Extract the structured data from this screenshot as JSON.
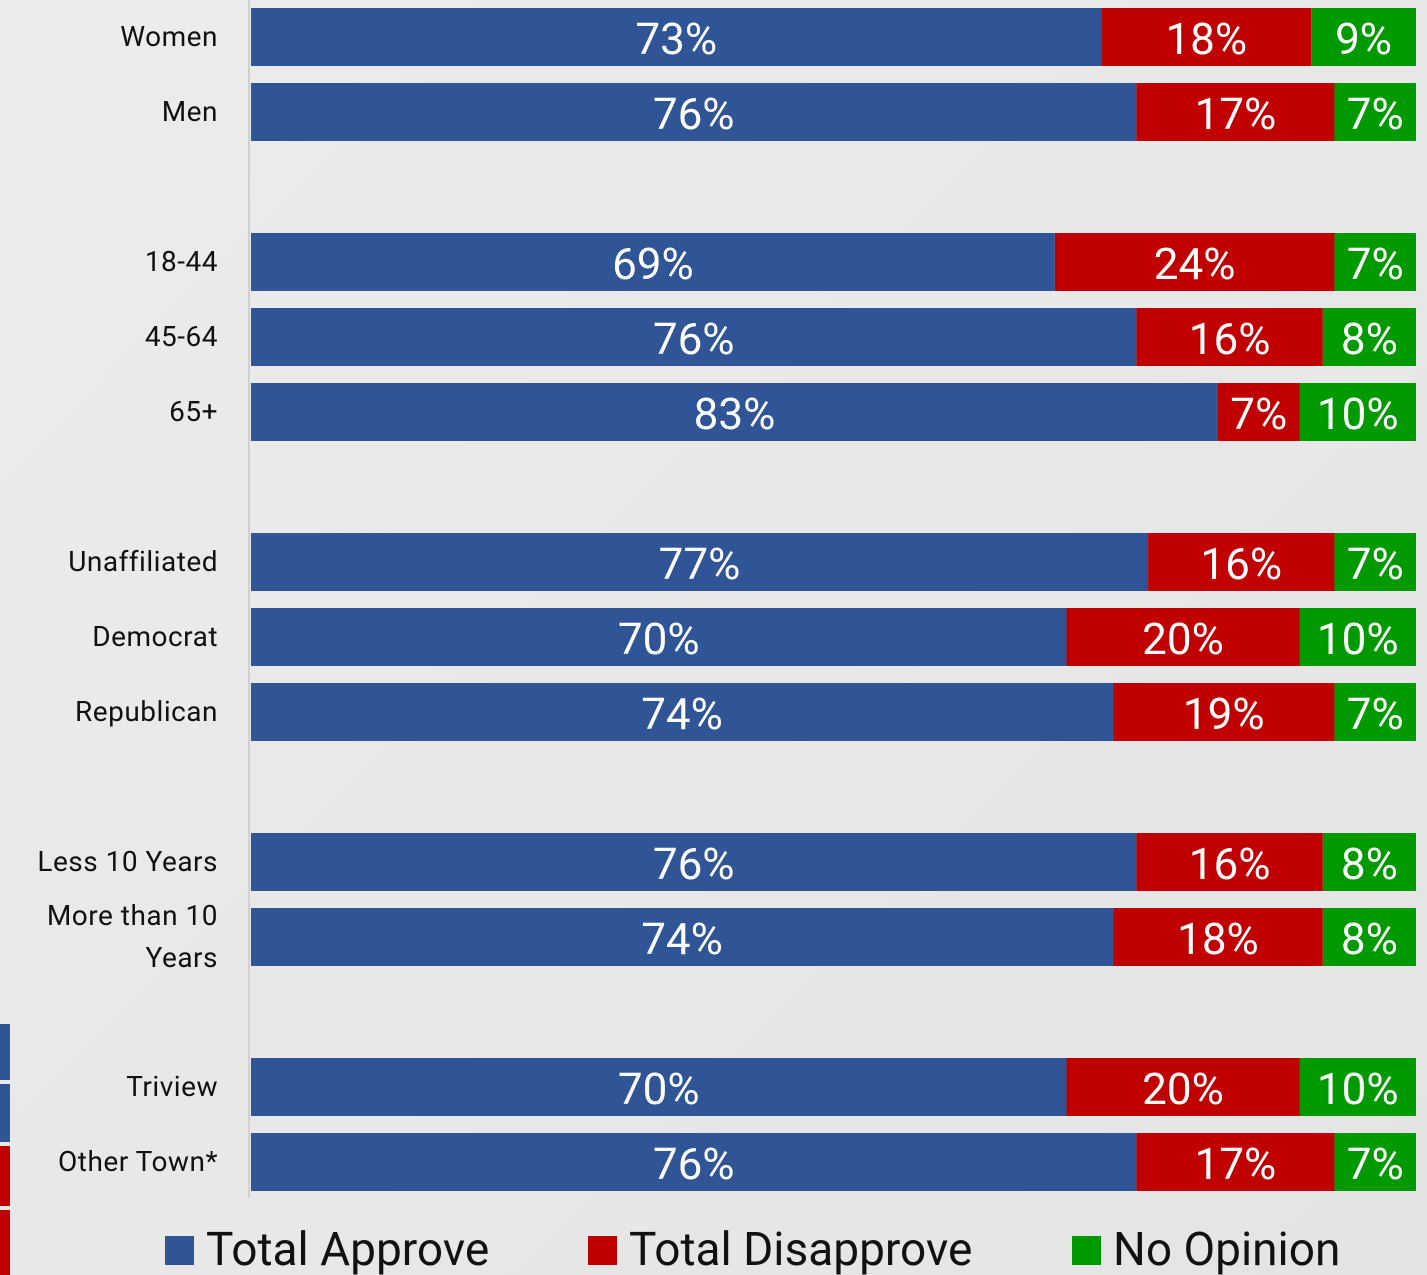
{
  "chart_data": {
    "type": "stacked-bar-horizontal",
    "categories": [
      "Women",
      "Men",
      null,
      "18-44",
      "45-64",
      "65+",
      null,
      "Unaffiliated",
      "Democrat",
      "Republican",
      null,
      "Less 10 Years",
      "More than 10 Years",
      null,
      "Triview",
      "Other Town*"
    ],
    "xlim": [
      0,
      100
    ],
    "series": [
      {
        "name": "Total Approve",
        "color": "#2f5597",
        "values": [
          73,
          76,
          null,
          69,
          76,
          83,
          null,
          77,
          70,
          74,
          null,
          76,
          74,
          null,
          70,
          76
        ],
        "value_labels": [
          "73%",
          "76%",
          null,
          "69%",
          "76%",
          "83%",
          null,
          "77%",
          "70%",
          "74%",
          null,
          "76%",
          "74%",
          null,
          "70%",
          "76%"
        ]
      },
      {
        "name": "Total Disapprove",
        "color": "#c00000",
        "values": [
          18,
          17,
          null,
          24,
          16,
          7,
          null,
          16,
          20,
          19,
          null,
          16,
          18,
          null,
          20,
          17
        ],
        "value_labels": [
          "18%",
          "17%",
          null,
          "24%",
          "16%",
          "7%",
          null,
          "16%",
          "20%",
          "19%",
          null,
          "16%",
          "18%",
          null,
          "20%",
          "17%"
        ]
      },
      {
        "name": "No Opinion",
        "color": "#009a00",
        "values": [
          9,
          7,
          null,
          7,
          8,
          10,
          null,
          7,
          10,
          7,
          null,
          8,
          8,
          null,
          10,
          7
        ],
        "value_labels": [
          "9%",
          "7%",
          null,
          "7%",
          "8%",
          "10%",
          null,
          "7%",
          "10%",
          "7%",
          null,
          "8%",
          "8%",
          null,
          "10%",
          "7%"
        ]
      }
    ],
    "legend": "bottom"
  }
}
